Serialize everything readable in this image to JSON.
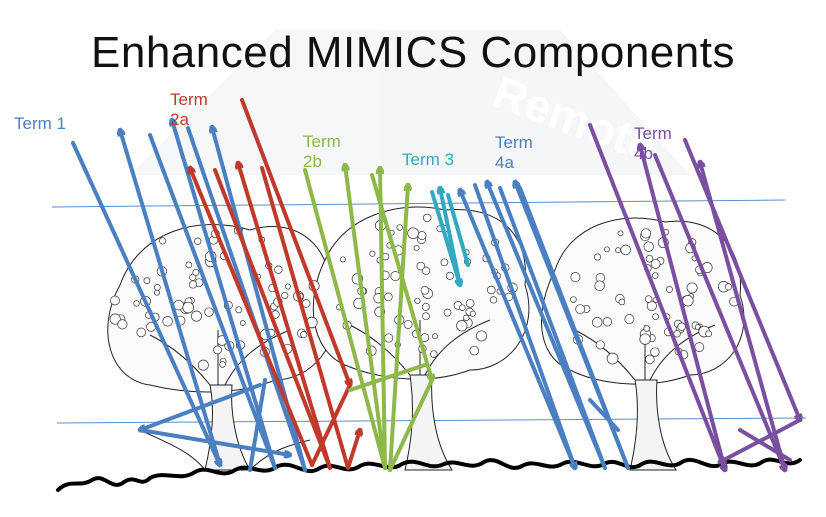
{
  "title": "Enhanced MIMICS Components",
  "watermark": "Remote",
  "terms": [
    {
      "id": "term1",
      "line1": "Term 1",
      "line2": "",
      "color": "#4a7fc1"
    },
    {
      "id": "term2a",
      "line1": "Term",
      "line2": "2a",
      "color": "#c0392b"
    },
    {
      "id": "term2b",
      "line1": "Term",
      "line2": "2b",
      "color": "#8db84a"
    },
    {
      "id": "term3",
      "line1": "Term 3",
      "line2": "",
      "color": "#31a9c1"
    },
    {
      "id": "term4a",
      "line1": "Term",
      "line2": "4a",
      "color": "#4a7fc1"
    },
    {
      "id": "term4b",
      "line1": "Term",
      "line2": "4b",
      "color": "#7b4fa0"
    }
  ],
  "colors": {
    "blue": "#4a7fc1",
    "red": "#c0392b",
    "green": "#8db84a",
    "cyan": "#31a9c1",
    "purple": "#7b4fa0",
    "layer_line": "#5b8ec9"
  },
  "layer_lines": [
    "canopy-top",
    "canopy-bottom"
  ],
  "trees": [
    "tree-left",
    "tree-middle",
    "tree-right"
  ]
}
